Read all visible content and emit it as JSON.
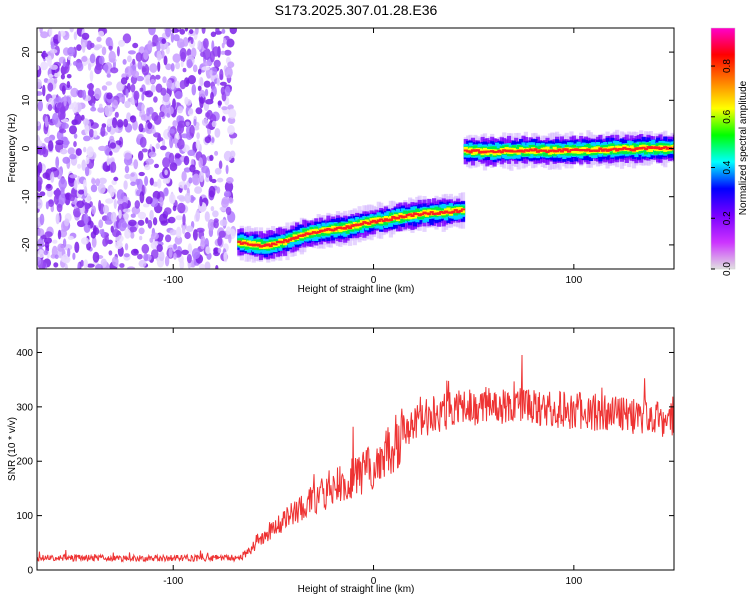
{
  "title": "S173.2025.307.01.28.E36",
  "colormap": [
    "#e0e0e0",
    "#cc33ff",
    "#7a00ff",
    "#0000ff",
    "#00ffff",
    "#00ff00",
    "#ffff00",
    "#ff8000",
    "#ff0000",
    "#ff00cc"
  ],
  "line_color": "#ee3333",
  "chart_data": [
    {
      "type": "heatmap",
      "title": "S173.2025.307.01.28.E36",
      "xlabel": "Height of straight line (km)",
      "ylabel": "Frequency (Hz)",
      "xlim": [
        -168,
        150
      ],
      "ylim": [
        -25,
        25
      ],
      "xticks": [
        -100,
        0,
        100
      ],
      "yticks": [
        -20,
        -10,
        0,
        10,
        20
      ],
      "colorbar": {
        "label": "Normalized spectral amplitude",
        "range": [
          0,
          0.95
        ],
        "ticks": [
          0.0,
          0.2,
          0.4,
          0.6,
          0.8
        ]
      },
      "noise_region_km": [
        -168,
        -70
      ],
      "ridge_segments": [
        {
          "x": [
            -68,
            -55,
            -45,
            -35,
            -25,
            -15,
            -5,
            5,
            15,
            25,
            35,
            44
          ],
          "y": [
            -19.5,
            -20.3,
            -19.2,
            -17.8,
            -17.0,
            -16.5,
            -15.5,
            -14.8,
            -14.0,
            -13.5,
            -13.2,
            -12.8
          ]
        },
        {
          "x": [
            45,
            60,
            75,
            90,
            105,
            120,
            135,
            150
          ],
          "y": [
            -0.5,
            -0.6,
            -0.4,
            -0.5,
            -0.3,
            -0.2,
            0.0,
            0.1
          ]
        }
      ]
    },
    {
      "type": "line",
      "xlabel": "Height of straight line (km)",
      "ylabel": "SNR (10 * v/v)",
      "xlim": [
        -168,
        150
      ],
      "ylim": [
        0,
        445
      ],
      "xticks": [
        -100,
        0,
        100
      ],
      "yticks": [
        0,
        100,
        200,
        300,
        400
      ],
      "series": [
        {
          "name": "SNR",
          "x": [
            -168,
            -100,
            -66,
            -60,
            -50,
            -40,
            -30,
            -20,
            -10,
            0,
            10,
            20,
            30,
            40,
            50,
            60,
            70,
            80,
            90,
            100,
            110,
            120,
            130,
            140,
            150
          ],
          "y": [
            22,
            22,
            22,
            40,
            75,
            105,
            130,
            150,
            170,
            190,
            230,
            265,
            285,
            295,
            300,
            305,
            300,
            298,
            296,
            292,
            290,
            285,
            282,
            280,
            278
          ]
        }
      ]
    }
  ]
}
